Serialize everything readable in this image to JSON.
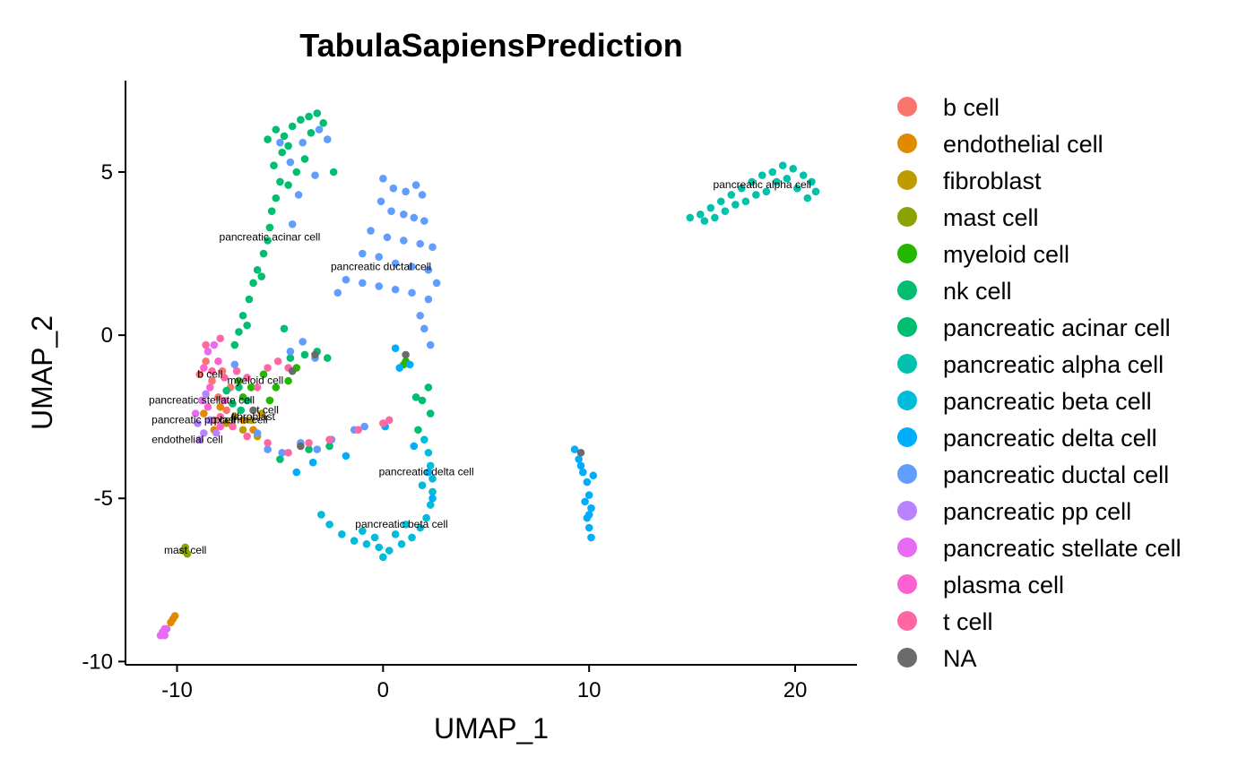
{
  "chart_data": {
    "type": "scatter",
    "title": "TabulaSapiensPrediction",
    "xlabel": "UMAP_1",
    "ylabel": "UMAP_2",
    "xlim": [
      -12.5,
      23
    ],
    "ylim": [
      -10.1,
      7.8
    ],
    "xticks": [
      -10,
      0,
      10,
      20
    ],
    "yticks": [
      -10,
      -5,
      0,
      5
    ],
    "grid": false,
    "legend": "right",
    "series": [
      {
        "name": "b cell",
        "color": "#F8766D",
        "points": [
          [
            -8.6,
            -0.8
          ],
          [
            -8.3,
            -1.4
          ],
          [
            -8.0,
            -1.9
          ],
          [
            -7.6,
            -2.3
          ],
          [
            -8.9,
            -1.2
          ],
          [
            -7.8,
            -1.1
          ],
          [
            -8.2,
            -2.6
          ],
          [
            -7.4,
            -1.6
          ]
        ]
      },
      {
        "name": "endothelial cell",
        "color": "#E18A00",
        "points": [
          [
            -10.2,
            -8.7
          ],
          [
            -10.1,
            -8.6
          ],
          [
            -10.3,
            -8.8
          ],
          [
            -8.7,
            -2.4
          ],
          [
            -8.2,
            -2.9
          ],
          [
            -7.9,
            -2.2
          ],
          [
            -6.8,
            -2.6
          ],
          [
            -6.3,
            -2.9
          ]
        ]
      },
      {
        "name": "fibroblast",
        "color": "#BE9C00",
        "points": [
          [
            -7.2,
            -2.5
          ],
          [
            -6.8,
            -2.9
          ],
          [
            -6.4,
            -2.6
          ],
          [
            -7.6,
            -2.7
          ],
          [
            -6.1,
            -3.1
          ],
          [
            -5.9,
            -2.4
          ]
        ]
      },
      {
        "name": "mast cell",
        "color": "#8CA200",
        "points": [
          [
            -9.6,
            -6.6
          ],
          [
            -9.5,
            -6.7
          ],
          [
            -9.7,
            -6.6
          ],
          [
            -9.6,
            -6.5
          ]
        ]
      },
      {
        "name": "myeloid cell",
        "color": "#24B700",
        "points": [
          [
            -7.0,
            -1.4
          ],
          [
            -6.4,
            -1.6
          ],
          [
            -5.8,
            -1.2
          ],
          [
            -5.2,
            -1.6
          ],
          [
            -6.8,
            -1.9
          ],
          [
            -4.6,
            -1.4
          ],
          [
            -4.2,
            -1.0
          ],
          [
            -5.5,
            -2.0
          ],
          [
            1.1,
            -0.8
          ],
          [
            1.0,
            -0.9
          ]
        ]
      },
      {
        "name": "nk cell",
        "color": "#00BE70",
        "points": [
          [
            -7.3,
            -2.1
          ],
          [
            -6.9,
            -2.3
          ],
          [
            -7.6,
            -1.7
          ],
          [
            -6.6,
            -2.0
          ],
          [
            -7.0,
            -1.6
          ]
        ]
      },
      {
        "name": "pancreatic acinar cell",
        "color": "#00BE70",
        "points": [
          [
            -5.2,
            6.3
          ],
          [
            -4.8,
            6.1
          ],
          [
            -4.4,
            6.4
          ],
          [
            -4.0,
            6.6
          ],
          [
            -3.6,
            6.7
          ],
          [
            -3.2,
            6.8
          ],
          [
            -2.9,
            6.5
          ],
          [
            -4.6,
            5.8
          ],
          [
            -4.9,
            5.6
          ],
          [
            -5.3,
            5.2
          ],
          [
            -5.0,
            4.7
          ],
          [
            -5.2,
            4.2
          ],
          [
            -5.4,
            3.8
          ],
          [
            -5.5,
            3.3
          ],
          [
            -5.6,
            2.9
          ],
          [
            -5.8,
            2.5
          ],
          [
            -6.1,
            2.0
          ],
          [
            -6.3,
            1.6
          ],
          [
            -6.5,
            1.1
          ],
          [
            -6.8,
            0.6
          ],
          [
            -7.0,
            0.1
          ],
          [
            -7.2,
            -0.3
          ],
          [
            -3.8,
            5.4
          ],
          [
            -4.2,
            5.0
          ],
          [
            -5.6,
            6.0
          ],
          [
            -2.4,
            5.0
          ],
          [
            -4.6,
            4.6
          ],
          [
            -3.5,
            6.2
          ],
          [
            -5.9,
            1.8
          ],
          [
            -6.6,
            0.3
          ],
          [
            -4.8,
            0.2
          ],
          [
            -4.5,
            -0.7
          ],
          [
            -3.8,
            -0.6
          ],
          [
            -3.2,
            -0.5
          ],
          [
            -2.7,
            -0.7
          ],
          [
            -3.6,
            -3.5
          ],
          [
            -2.6,
            -3.4
          ],
          [
            -5.0,
            -3.8
          ],
          [
            1.9,
            -2.0
          ],
          [
            2.2,
            -1.6
          ],
          [
            1.6,
            -1.9
          ],
          [
            2.3,
            -2.4
          ],
          [
            1.7,
            -2.9
          ]
        ]
      },
      {
        "name": "pancreatic alpha cell",
        "color": "#00C1AB",
        "points": [
          [
            14.9,
            3.6
          ],
          [
            15.4,
            3.7
          ],
          [
            15.9,
            3.9
          ],
          [
            16.4,
            4.1
          ],
          [
            16.9,
            4.3
          ],
          [
            17.4,
            4.5
          ],
          [
            17.9,
            4.7
          ],
          [
            18.4,
            4.9
          ],
          [
            18.9,
            5.0
          ],
          [
            19.4,
            5.2
          ],
          [
            19.9,
            5.1
          ],
          [
            20.4,
            4.9
          ],
          [
            20.8,
            4.7
          ],
          [
            21.0,
            4.4
          ],
          [
            20.6,
            4.2
          ],
          [
            18.6,
            4.4
          ],
          [
            17.6,
            4.1
          ],
          [
            16.6,
            3.8
          ],
          [
            19.1,
            4.7
          ],
          [
            20.1,
            4.5
          ],
          [
            15.6,
            3.5
          ],
          [
            16.1,
            3.6
          ],
          [
            17.1,
            4.0
          ],
          [
            18.1,
            4.3
          ],
          [
            19.6,
            4.8
          ]
        ]
      },
      {
        "name": "pancreatic beta cell",
        "color": "#00BBDA",
        "points": [
          [
            -3.0,
            -5.5
          ],
          [
            -2.6,
            -5.8
          ],
          [
            -2.0,
            -6.1
          ],
          [
            -1.4,
            -6.3
          ],
          [
            -0.8,
            -6.4
          ],
          [
            -0.2,
            -6.5
          ],
          [
            0.3,
            -6.6
          ],
          [
            0.9,
            -6.4
          ],
          [
            1.4,
            -6.2
          ],
          [
            1.8,
            -5.9
          ],
          [
            2.1,
            -5.6
          ],
          [
            2.3,
            -5.2
          ],
          [
            2.4,
            -4.8
          ],
          [
            2.4,
            -4.4
          ],
          [
            2.3,
            -4.0
          ],
          [
            2.2,
            -3.6
          ],
          [
            -1.0,
            -6.0
          ],
          [
            0.0,
            -6.8
          ],
          [
            0.6,
            -6.1
          ],
          [
            1.1,
            -5.8
          ],
          [
            -0.4,
            -6.2
          ],
          [
            1.9,
            -4.6
          ],
          [
            2.0,
            -3.2
          ]
        ]
      },
      {
        "name": "pancreatic delta cell",
        "color": "#00ACFC",
        "points": [
          [
            9.3,
            -3.5
          ],
          [
            9.5,
            -3.8
          ],
          [
            9.7,
            -4.2
          ],
          [
            9.9,
            -4.5
          ],
          [
            10.0,
            -4.9
          ],
          [
            10.1,
            -5.3
          ],
          [
            9.9,
            -5.6
          ],
          [
            10.0,
            -5.9
          ],
          [
            10.1,
            -6.2
          ],
          [
            9.8,
            -5.1
          ],
          [
            10.2,
            -4.3
          ],
          [
            9.6,
            -4.0
          ],
          [
            10.0,
            -5.5
          ],
          [
            -4.2,
            -4.2
          ],
          [
            -3.4,
            -3.9
          ],
          [
            -1.8,
            -3.7
          ],
          [
            0.1,
            -2.8
          ],
          [
            0.8,
            -1.0
          ],
          [
            0.6,
            -0.4
          ],
          [
            1.3,
            -0.9
          ],
          [
            2.4,
            -5.0
          ],
          [
            2.2,
            -4.2
          ],
          [
            1.5,
            -3.4
          ]
        ]
      },
      {
        "name": "pancreatic ductal cell",
        "color": "#619CFF",
        "points": [
          [
            0.0,
            4.8
          ],
          [
            0.5,
            4.5
          ],
          [
            1.1,
            4.4
          ],
          [
            1.6,
            4.6
          ],
          [
            1.9,
            4.3
          ],
          [
            -0.1,
            4.1
          ],
          [
            0.4,
            3.8
          ],
          [
            1.0,
            3.7
          ],
          [
            1.5,
            3.6
          ],
          [
            2.0,
            3.5
          ],
          [
            -0.6,
            3.2
          ],
          [
            0.2,
            3.0
          ],
          [
            1.0,
            2.9
          ],
          [
            1.8,
            2.8
          ],
          [
            2.4,
            2.7
          ],
          [
            -1.0,
            2.5
          ],
          [
            -0.2,
            2.4
          ],
          [
            0.6,
            2.2
          ],
          [
            1.4,
            2.1
          ],
          [
            2.2,
            2.0
          ],
          [
            -1.8,
            1.7
          ],
          [
            -1.0,
            1.6
          ],
          [
            -0.2,
            1.5
          ],
          [
            0.6,
            1.4
          ],
          [
            1.4,
            1.3
          ],
          [
            2.2,
            1.1
          ],
          [
            2.6,
            1.6
          ],
          [
            -2.2,
            1.3
          ],
          [
            1.8,
            0.6
          ],
          [
            2.0,
            0.2
          ],
          [
            2.3,
            -0.3
          ],
          [
            -5.0,
            5.9
          ],
          [
            -4.5,
            5.3
          ],
          [
            -3.9,
            5.9
          ],
          [
            -3.1,
            6.3
          ],
          [
            -2.7,
            6.0
          ],
          [
            -3.3,
            4.9
          ],
          [
            -4.1,
            4.3
          ],
          [
            -4.4,
            3.4
          ],
          [
            -7.2,
            -0.9
          ],
          [
            -6.1,
            -3.0
          ],
          [
            -5.6,
            -3.5
          ],
          [
            -4.9,
            -3.6
          ],
          [
            -4.0,
            -3.3
          ],
          [
            -3.2,
            -3.5
          ],
          [
            -2.5,
            -3.2
          ],
          [
            -1.4,
            -2.9
          ],
          [
            -0.9,
            -2.8
          ],
          [
            -4.5,
            -0.5
          ],
          [
            -3.9,
            -0.2
          ],
          [
            -3.3,
            -0.7
          ]
        ]
      },
      {
        "name": "pancreatic pp cell",
        "color": "#B983FF",
        "points": [
          [
            -9.0,
            -2.7
          ],
          [
            -8.7,
            -3.0
          ],
          [
            -8.4,
            -2.6
          ],
          [
            -8.9,
            -3.2
          ],
          [
            -8.1,
            -3.0
          ],
          [
            -8.6,
            -1.8
          ]
        ]
      },
      {
        "name": "pancreatic stellate cell",
        "color": "#E76BF3",
        "points": [
          [
            -10.6,
            -9.0
          ],
          [
            -10.7,
            -9.1
          ],
          [
            -10.5,
            -9.0
          ],
          [
            -10.8,
            -9.2
          ],
          [
            -10.6,
            -9.2
          ],
          [
            -8.5,
            -0.5
          ],
          [
            -8.2,
            -0.3
          ],
          [
            -9.1,
            -2.4
          ],
          [
            -8.8,
            -2.0
          ]
        ]
      },
      {
        "name": "plasma cell",
        "color": "#FD61D1",
        "points": [
          [
            -8.7,
            -1.0
          ],
          [
            -8.4,
            -1.6
          ],
          [
            -8.0,
            -0.8
          ],
          [
            -7.7,
            -2.0
          ],
          [
            -8.5,
            -2.2
          ],
          [
            -7.9,
            -2.8
          ]
        ]
      },
      {
        "name": "t cell",
        "color": "#FF67A4",
        "points": [
          [
            -8.3,
            -1.1
          ],
          [
            -7.7,
            -1.3
          ],
          [
            -7.1,
            -1.1
          ],
          [
            -6.6,
            -1.3
          ],
          [
            -6.1,
            -1.6
          ],
          [
            -5.6,
            -1.0
          ],
          [
            -5.1,
            -0.8
          ],
          [
            -4.6,
            -1.0
          ],
          [
            -7.9,
            -2.5
          ],
          [
            -7.3,
            -2.8
          ],
          [
            -6.6,
            -3.1
          ],
          [
            -5.6,
            -3.3
          ],
          [
            -4.6,
            -3.6
          ],
          [
            -3.6,
            -3.3
          ],
          [
            -2.6,
            -3.2
          ],
          [
            0.0,
            -2.7
          ],
          [
            0.3,
            -2.6
          ],
          [
            -1.2,
            -2.9
          ],
          [
            -8.6,
            -0.3
          ],
          [
            -7.9,
            -0.1
          ]
        ]
      },
      {
        "name": "NA",
        "color": "#6B6B6B",
        "points": [
          [
            -4.4,
            -1.1
          ],
          [
            -4.0,
            -3.4
          ],
          [
            9.6,
            -3.6
          ],
          [
            1.1,
            -0.6
          ],
          [
            -3.3,
            -0.6
          ],
          [
            -6.3,
            -2.3
          ]
        ]
      }
    ],
    "annotations": [
      {
        "text": "pancreatic alpha cell",
        "x": 18.4,
        "y": 4.5
      },
      {
        "text": "pancreatic acinar cell",
        "x": -5.5,
        "y": 2.9
      },
      {
        "text": "pancreatic ductal cell",
        "x": -0.1,
        "y": 2.0
      },
      {
        "text": "b cell",
        "x": -8.4,
        "y": -1.3
      },
      {
        "text": "myeloid cell",
        "x": -6.2,
        "y": -1.5
      },
      {
        "text": "pancreatic stellate cell",
        "x": -8.8,
        "y": -2.1
      },
      {
        "text": "t cell",
        "x": -5.6,
        "y": -2.4
      },
      {
        "text": "fibroblast",
        "x": -6.3,
        "y": -2.6
      },
      {
        "text": "pancreatic pp cell",
        "x": -9.2,
        "y": -2.7
      },
      {
        "text": "plasma cell",
        "x": -6.9,
        "y": -2.7
      },
      {
        "text": "endothelial cell",
        "x": -9.5,
        "y": -3.3
      },
      {
        "text": "pancreatic delta cell",
        "x": 2.1,
        "y": -4.3
      },
      {
        "text": "pancreatic beta cell",
        "x": 0.9,
        "y": -5.9
      },
      {
        "text": "mast cell",
        "x": -9.6,
        "y": -6.7
      }
    ]
  }
}
